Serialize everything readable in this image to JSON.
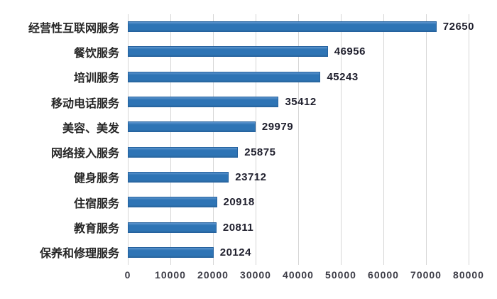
{
  "chart_data": {
    "type": "bar",
    "orientation": "horizontal",
    "title": "",
    "xlabel": "",
    "ylabel": "",
    "categories": [
      "经营性互联网服务",
      "餐饮服务",
      "培训服务",
      "移动电话服务",
      "美容、美发",
      "网络接入服务",
      "健身服务",
      "住宿服务",
      "教育服务",
      "保养和修理服务"
    ],
    "values": [
      72650,
      46956,
      45243,
      35412,
      29979,
      25875,
      23712,
      20918,
      20811,
      20124
    ],
    "x_ticks": [
      0,
      10000,
      20000,
      30000,
      40000,
      50000,
      60000,
      70000,
      80000
    ],
    "xlim": [
      0,
      80000
    ],
    "grid": true,
    "legend": "none",
    "colors": {
      "bar_fill": "#2e74b5",
      "bar_border": "#24619e",
      "gridline": "#d6d6d6",
      "category_label": "#262626",
      "value_label": "#20202e",
      "tick_label": "#3c3c46",
      "background": "#ffffff"
    }
  }
}
